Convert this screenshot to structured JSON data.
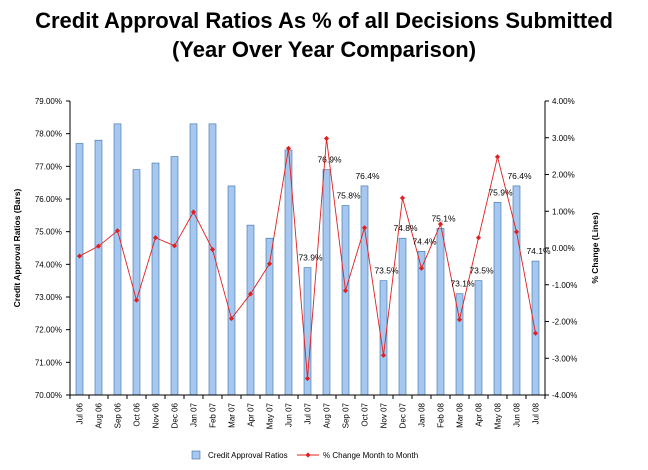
{
  "title_line1": "Credit Approval Ratios As % of all Decisions Submitted",
  "title_line2": "(Year Over Year Comparison)",
  "chart_data": {
    "type": "bar",
    "categories": [
      "Jul 06",
      "Aug 06",
      "Sep 06",
      "Oct 06",
      "Nov 06",
      "Dec 06",
      "Jan 07",
      "Feb 07",
      "Mar 07",
      "Apr 07",
      "May 07",
      "Jun 07",
      "Jul 07",
      "Aug 07",
      "Sep 07",
      "Oct 07",
      "Nov 07",
      "Dec 07",
      "Jan 08",
      "Feb 08",
      "Mar 08",
      "Apr 08",
      "May 08",
      "Jun 08",
      "Jul 08"
    ],
    "bar_series": {
      "name": "Credit Approval Ratios",
      "color": "#a6c8f0",
      "values": [
        77.7,
        77.8,
        78.3,
        76.9,
        77.1,
        77.3,
        78.3,
        78.3,
        76.4,
        75.2,
        74.8,
        77.5,
        73.9,
        76.9,
        75.8,
        76.4,
        73.5,
        74.8,
        74.4,
        75.1,
        73.1,
        73.5,
        75.9,
        76.4,
        74.1
      ]
    },
    "line_series": {
      "name": "% Change Month to Month",
      "color": "#e02020",
      "values": [
        -0.22,
        0.05,
        0.47,
        -1.42,
        0.28,
        0.06,
        0.98,
        -0.04,
        -1.92,
        -1.25,
        -0.43,
        2.71,
        -3.55,
        2.98,
        -1.16,
        0.55,
        -2.92,
        1.36,
        -0.55,
        0.65,
        -1.95,
        0.28,
        2.48,
        0.44,
        -2.32
      ]
    },
    "data_labels": [
      {
        "index": 12,
        "text": "73.9%"
      },
      {
        "index": 13,
        "text": "76.9%"
      },
      {
        "index": 14,
        "text": "75.8%"
      },
      {
        "index": 15,
        "text": "76.4%"
      },
      {
        "index": 16,
        "text": "73.5%"
      },
      {
        "index": 17,
        "text": "74.8%"
      },
      {
        "index": 18,
        "text": "74.4%"
      },
      {
        "index": 19,
        "text": "75.1%"
      },
      {
        "index": 20,
        "text": "73.1%"
      },
      {
        "index": 21,
        "text": "73.5%"
      },
      {
        "index": 22,
        "text": "75.9%"
      },
      {
        "index": 23,
        "text": "76.4%"
      },
      {
        "index": 24,
        "text": "74.1%"
      }
    ],
    "ylabel_left": "Credit Approval Ratios (Bars)",
    "ylabel_right": "% Change (Lines)",
    "ylim_left": [
      70,
      79
    ],
    "yticks_left": [
      "70.00%",
      "71.00%",
      "72.00%",
      "73.00%",
      "74.00%",
      "75.00%",
      "76.00%",
      "77.00%",
      "78.00%",
      "79.00%"
    ],
    "ylim_right": [
      -4,
      4
    ],
    "yticks_right": [
      "-4.00%",
      "-3.00%",
      "-2.00%",
      "-1.00%",
      "0.00%",
      "1.00%",
      "2.00%",
      "3.00%",
      "4.00%"
    ],
    "legend_placement": "bottom-center",
    "grid": false
  }
}
